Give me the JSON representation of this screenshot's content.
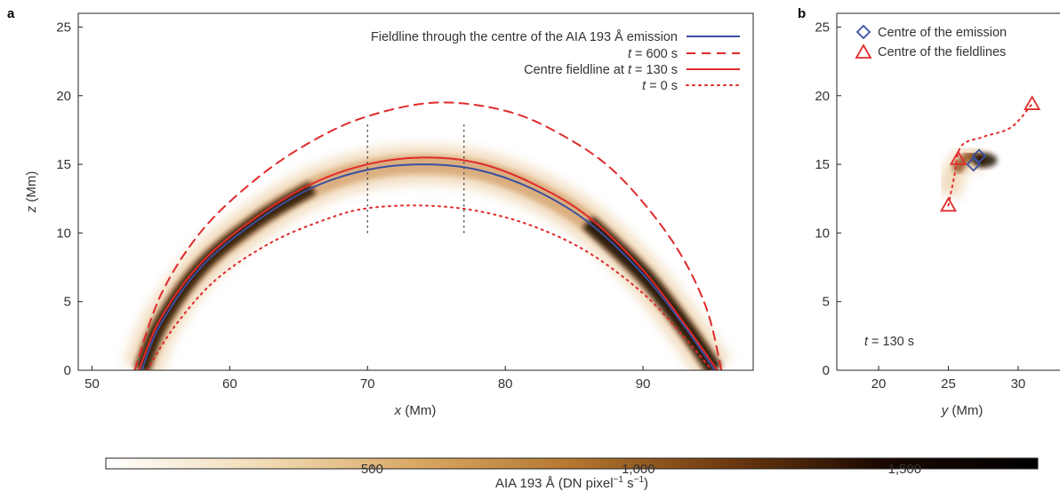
{
  "panels": {
    "a": {
      "letter": "a"
    },
    "b": {
      "letter": "b"
    }
  },
  "chart_data": [
    {
      "panel": "a",
      "type": "line",
      "xlabel_var": "x",
      "xlabel_unit": " (Mm)",
      "ylabel_var": "z",
      "ylabel_unit": " (Mm)",
      "xlim": [
        49,
        98
      ],
      "ylim": [
        0,
        26
      ],
      "xticks": [
        50,
        60,
        70,
        80,
        90
      ],
      "yticks": [
        0,
        5,
        10,
        15,
        20,
        25
      ],
      "background": "heatmap of AIA 193 Å emission along the loop",
      "series": [
        {
          "name": "Fieldline through the centre of the AIA 193 Å emission",
          "color": "#3b4fa0",
          "style": "solid",
          "x": [
            53.6,
            55,
            58,
            62,
            66,
            70,
            74,
            78,
            82,
            86,
            90,
            93,
            95.2
          ],
          "z": [
            0,
            3.4,
            7.6,
            10.9,
            13.3,
            14.6,
            15.0,
            14.6,
            13.2,
            10.8,
            7.0,
            3.2,
            0
          ]
        },
        {
          "name_pre": "",
          "name_var": "t",
          "name_post": " = 600 s",
          "color": "#e02b2b",
          "style": "dashed",
          "x": [
            53.1,
            55,
            58,
            62,
            66,
            70,
            75,
            80,
            84,
            88,
            92,
            94.5,
            95.7
          ],
          "z": [
            0,
            5.5,
            10.2,
            14.0,
            16.7,
            18.5,
            19.5,
            18.9,
            17.2,
            14.4,
            9.6,
            4.8,
            0
          ]
        },
        {
          "name_pre": "Centre fieldline at ",
          "name_var": "t",
          "name_post": " = 130 s",
          "color": "#e02b2b",
          "style": "solid",
          "x": [
            53.4,
            55,
            58,
            62,
            66,
            70,
            74,
            78,
            82,
            86,
            90,
            93,
            95.4
          ],
          "z": [
            0,
            3.8,
            7.9,
            11.2,
            13.6,
            15.0,
            15.5,
            15.1,
            13.6,
            11.2,
            7.3,
            3.4,
            0
          ]
        },
        {
          "name_pre": "",
          "name_var": "t",
          "name_post": " = 0 s",
          "color": "#e02b2b",
          "style": "dotted",
          "x": [
            54.0,
            56,
            59,
            63,
            67,
            70,
            74,
            78,
            82,
            86,
            90,
            93,
            95.0
          ],
          "z": [
            0,
            3.2,
            6.6,
            9.3,
            11.0,
            11.8,
            12.0,
            11.6,
            10.5,
            8.6,
            5.6,
            2.4,
            0
          ]
        }
      ],
      "vlines": [
        {
          "x": 70,
          "z": [
            10,
            18
          ]
        },
        {
          "x": 77,
          "z": [
            10,
            18
          ]
        }
      ]
    },
    {
      "panel": "b",
      "type": "scatter",
      "xlabel_var": "y",
      "xlabel_unit": " (Mm)",
      "xlim": [
        17,
        33
      ],
      "ylim": [
        0,
        26
      ],
      "xticks": [
        20,
        25,
        30
      ],
      "yticks": [
        0,
        5,
        10,
        15,
        20,
        25
      ],
      "annotation_var": "t",
      "annotation_post": " = 130 s",
      "series": [
        {
          "name": "Centre of the emission",
          "marker": "diamond",
          "color": "#3b4fa0",
          "points": [
            [
              26.8,
              15.0
            ],
            [
              27.2,
              15.6
            ]
          ]
        },
        {
          "name": "Centre of the fieldlines",
          "marker": "triangle",
          "color": "#e02b2b",
          "points": [
            [
              25.0,
              12.0
            ],
            [
              25.7,
              15.4
            ],
            [
              31.0,
              19.4
            ]
          ]
        }
      ],
      "dotted_path": {
        "color": "#e02b2b",
        "points": [
          [
            25.0,
            12.0
          ],
          [
            25.4,
            14.0
          ],
          [
            25.9,
            16.3
          ],
          [
            27.5,
            17.0
          ],
          [
            29.5,
            17.7
          ],
          [
            31.0,
            19.4
          ]
        ]
      }
    }
  ],
  "colorbar": {
    "label_pre": "AIA 193 Å (DN pixel",
    "label_sup1": "−1",
    "label_mid": " s",
    "label_sup2": "−1",
    "label_post": ")",
    "range": [
      0,
      1750
    ],
    "ticks": [
      "500",
      "1,000",
      "1,500"
    ],
    "tick_values": [
      500,
      1000,
      1500
    ],
    "colors": [
      "#ffffff",
      "#f2dcb6",
      "#d9a864",
      "#b4772f",
      "#6e3a10",
      "#1a0800",
      "#000000"
    ]
  }
}
